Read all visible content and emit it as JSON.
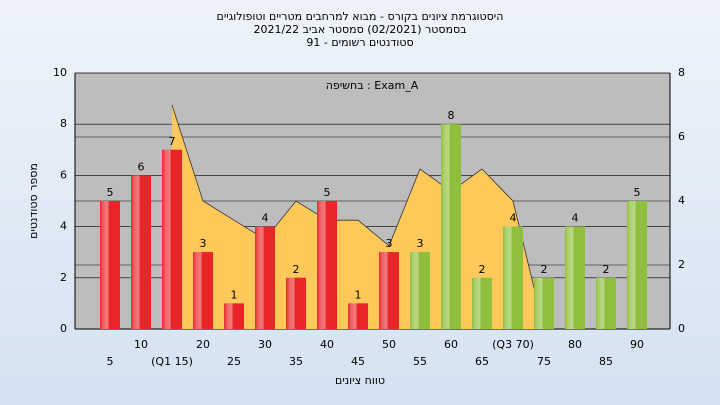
{
  "chart_data": {
    "type": "bar",
    "title": "היסטוגרמת ציונים בקורס - מבוא למרחבים מטריים וטופולוגיים",
    "subtitle": "בסמסטר (02/2021) סמסטר אביב 2021/22",
    "subtitle2": "סטודנטים רשומים - 91",
    "annotation": "Exam_A : בחשיפה",
    "xlabel": "טווח ציונים",
    "ylabel": "מספר סטודנטים",
    "categories": [
      "5",
      "10",
      "(Q1 15)",
      "20",
      "25",
      "30",
      "35",
      "40",
      "45",
      "50",
      "55",
      "60",
      "65",
      "(Q3 70)",
      "75",
      "80",
      "85",
      "90"
    ],
    "series": [
      {
        "type": "bar",
        "colors": [
          "#e8262a",
          "#e8262a",
          "#e8262a",
          "#e8262a",
          "#e8262a",
          "#e8262a",
          "#e8262a",
          "#e8262a",
          "#e8262a",
          "#e8262a",
          "#8fbf3c",
          "#8fbf3c",
          "#8fbf3c",
          "#8fbf3c",
          "#8fbf3c",
          "#8fbf3c",
          "#8fbf3c",
          "#8fbf3c"
        ],
        "values": [
          5,
          6,
          7,
          3,
          1,
          4,
          2,
          5,
          1,
          3,
          3,
          8,
          2,
          4,
          2,
          4,
          2,
          5
        ]
      },
      {
        "type": "area",
        "axis": "y2",
        "color": "#ffc95a",
        "values": [
          null,
          null,
          7,
          4,
          3.4,
          2.8,
          4,
          3.4,
          3.4,
          2.6,
          5,
          4.3,
          5,
          4,
          0,
          null,
          null,
          null
        ]
      }
    ],
    "ylim": [
      0,
      10
    ],
    "yticks": [
      0,
      2,
      4,
      6,
      8,
      10
    ],
    "y2lim": [
      0,
      8
    ],
    "y2ticks": [
      0,
      2,
      4,
      6,
      8
    ],
    "grid": true
  }
}
